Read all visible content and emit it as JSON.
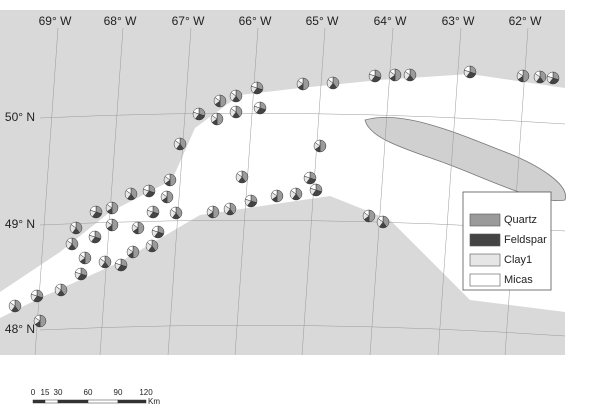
{
  "map": {
    "longitudes": [
      "69° W",
      "68° W",
      "67° W",
      "66° W",
      "65° W",
      "64° W",
      "63° W",
      "62° W"
    ],
    "latitudes": [
      "50° N",
      "49° N",
      "48° N"
    ],
    "legend": [
      "Quartz",
      "Feldspar",
      "Clay1",
      "Micas"
    ],
    "scale": {
      "labels": [
        0,
        15,
        30,
        60,
        90,
        120
      ],
      "unit": "Km"
    }
  }
}
